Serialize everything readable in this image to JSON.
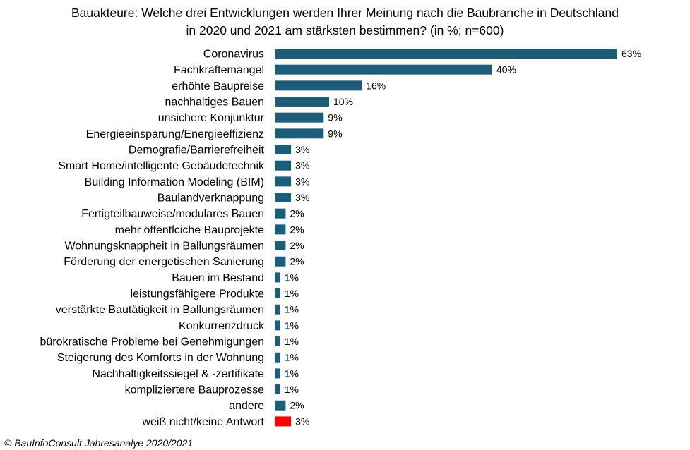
{
  "chart_data": {
    "type": "bar",
    "orientation": "horizontal",
    "title": "Bauakteure: Welche drei Entwicklungen  werden Ihrer Meinung nach die Baubranche in Deutschland\nin 2020 und 2021 am stärksten bestimmen?  (in %; n=600)",
    "categories": [
      "Coronavirus",
      "Fachkräftemangel",
      "erhöhte Baupreise",
      "nachhaltiges Bauen",
      "unsichere Konjunktur",
      "Energieeinsparung/Energieeffizienz",
      "Demografie/Barrierefreiheit",
      "Smart Home/intelligente Gebäudetechnik",
      "Building Information Modeling (BIM)",
      "Baulandverknappung",
      "Fertigteilbauweise/modulares Bauen",
      "mehr öffentlciche Bauprojekte",
      "Wohnungsknappheit in Ballungsräumen",
      "Förderung der energetischen Sanierung",
      "Bauen im Bestand",
      "leistungsfähigere Produkte",
      "verstärkte Bautätigkeit in Ballungsräumen",
      "Konkurrenzdruck",
      "bürokratische Probleme bei Genehmigungen",
      "Steigerung des Komforts in der Wohnung",
      "Nachhaltigkeitssiegel & -zertifikate",
      "kompliziertere Bauprozesse",
      "andere",
      "weiß nicht/keine Antwort"
    ],
    "values": [
      63,
      40,
      16,
      10,
      9,
      9,
      3,
      3,
      3,
      3,
      2,
      2,
      2,
      2,
      1,
      1,
      1,
      1,
      1,
      1,
      1,
      1,
      2,
      3
    ],
    "data_labels": [
      "63%",
      "40%",
      "16%",
      "10%",
      "9%",
      "9%",
      "3%",
      "3%",
      "3%",
      "3%",
      "2%",
      "2%",
      "2%",
      "2%",
      "1%",
      "1%",
      "1%",
      "1%",
      "1%",
      "1%",
      "1%",
      "1%",
      "2%",
      "3%"
    ],
    "colors": [
      "#1a5e7a",
      "#1a5e7a",
      "#1a5e7a",
      "#1a5e7a",
      "#1a5e7a",
      "#1a5e7a",
      "#1a5e7a",
      "#1a5e7a",
      "#1a5e7a",
      "#1a5e7a",
      "#1a5e7a",
      "#1a5e7a",
      "#1a5e7a",
      "#1a5e7a",
      "#1a5e7a",
      "#1a5e7a",
      "#1a5e7a",
      "#1a5e7a",
      "#1a5e7a",
      "#1a5e7a",
      "#1a5e7a",
      "#1a5e7a",
      "#1a5e7a",
      "#ff0000"
    ],
    "xlim": [
      0,
      63
    ],
    "grid": false,
    "legend": "none"
  },
  "source": "© BauInfoConsult Jahresanalye 2020/2021"
}
